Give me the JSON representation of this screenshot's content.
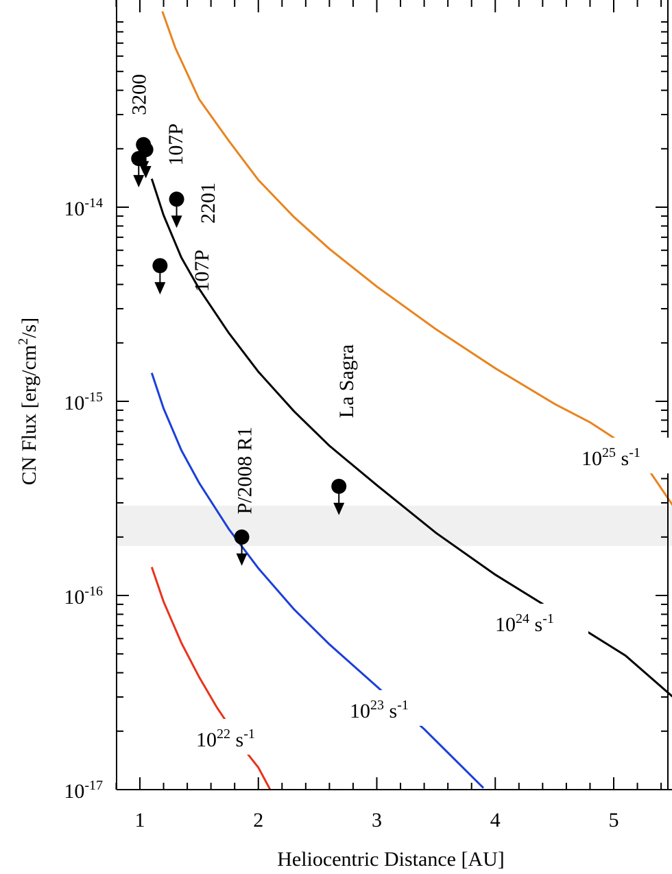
{
  "chart_data": {
    "type": "line",
    "xlabel": "Heliocentric Distance [AU]",
    "ylabel": "CN Flux [erg/cm²/s]",
    "ylabel_parts": {
      "base": "CN Flux [erg/cm",
      "sup": "2",
      "end": "/s]"
    },
    "xlim": [
      0.8,
      5.5
    ],
    "ylim": [
      1e-17,
      1e-13
    ],
    "yscale": "log",
    "xticks": [
      {
        "value": 1,
        "label": "1"
      },
      {
        "value": 2,
        "label": "2"
      },
      {
        "value": 3,
        "label": "3"
      },
      {
        "value": 4,
        "label": "4"
      },
      {
        "value": 5,
        "label": "5"
      }
    ],
    "yticks": [
      {
        "value": 1e-17,
        "base": "10",
        "exp": "-17"
      },
      {
        "value": 1e-16,
        "base": "10",
        "exp": "-16"
      },
      {
        "value": 1e-15,
        "base": "10",
        "exp": "-15"
      },
      {
        "value": 1e-14,
        "base": "10",
        "exp": "-14"
      }
    ],
    "shaded_band": {
      "y": [
        1.8e-16,
        2.9e-16
      ],
      "color": "#f0f0f0"
    },
    "series": [
      {
        "name_base": "10",
        "name_exp": "25",
        "name_unit": " s",
        "name_unit_exp": "-1",
        "color": "#e8841f",
        "x": [
          1.19,
          1.3,
          1.5,
          1.75,
          2.0,
          2.3,
          2.6,
          3.0,
          3.5,
          4.0,
          4.5,
          4.8,
          5.2,
          5.5
        ],
        "y": [
          1.02e-13,
          6.6e-14,
          3.6e-14,
          2.2e-14,
          1.38e-14,
          8.9e-15,
          6.1e-15,
          3.9e-15,
          2.35e-15,
          1.48e-15,
          9.7e-16,
          7.8e-16,
          5.4e-16,
          2.9e-16
        ]
      },
      {
        "name_base": "10",
        "name_exp": "24",
        "name_unit": " s",
        "name_unit_exp": "-1",
        "color": "#000000",
        "x": [
          1.1,
          1.2,
          1.35,
          1.5,
          1.75,
          2.0,
          2.3,
          2.6,
          3.0,
          3.5,
          4.0,
          4.6,
          5.1,
          5.5
        ],
        "y": [
          1.4e-14,
          9.1e-15,
          5.5e-15,
          3.8e-15,
          2.25e-15,
          1.42e-15,
          8.9e-16,
          5.9e-16,
          3.7e-16,
          2.1e-16,
          1.28e-16,
          7.6e-17,
          4.9e-17,
          3e-17
        ]
      },
      {
        "name_base": "10",
        "name_exp": "23",
        "name_unit": " s",
        "name_unit_exp": "-1",
        "color": "#1a3fd9",
        "x": [
          1.1,
          1.2,
          1.35,
          1.5,
          1.75,
          2.0,
          2.3,
          2.6,
          3.0,
          3.4,
          3.9
        ],
        "y": [
          1.4e-15,
          9.2e-16,
          5.6e-16,
          3.8e-16,
          2.2e-16,
          1.38e-16,
          8.5e-17,
          5.6e-17,
          3.4e-17,
          2.05e-17,
          1.02e-17
        ]
      },
      {
        "name_base": "10",
        "name_exp": "22",
        "name_unit": " s",
        "name_unit_exp": "-1",
        "color": "#e8341c",
        "x": [
          1.1,
          1.2,
          1.35,
          1.5,
          1.65,
          1.75,
          1.85,
          2.0,
          2.1
        ],
        "y": [
          1.4e-16,
          9.3e-17,
          5.7e-17,
          3.8e-17,
          2.65e-17,
          2.15e-17,
          1.7e-17,
          1.3e-17,
          1e-17
        ]
      }
    ],
    "points": [
      {
        "x": 0.99,
        "y": 1.78e-14,
        "upper_limit": true
      },
      {
        "x": 1.03,
        "y": 2.1e-14,
        "upper_limit": true
      },
      {
        "x": 1.05,
        "y": 1.98e-14,
        "upper_limit": true
      },
      {
        "x": 1.31,
        "y": 1.1e-14,
        "upper_limit": true
      },
      {
        "x": 1.17,
        "y": 5e-15,
        "upper_limit": true
      },
      {
        "x": 1.86,
        "y": 2e-16,
        "upper_limit": true
      },
      {
        "x": 2.68,
        "y": 3.65e-16,
        "upper_limit": true
      }
    ],
    "point_labels": [
      {
        "text": "3200",
        "x": 1.05,
        "y": 3.8e-14
      },
      {
        "text": "107P",
        "x": 1.36,
        "y": 2.1e-14
      },
      {
        "text": "2201",
        "x": 1.63,
        "y": 1.05e-14
      },
      {
        "text": "107P",
        "x": 1.58,
        "y": 4.7e-15
      },
      {
        "text": "P/2008 R1",
        "x": 1.94,
        "y": 4.4e-16
      },
      {
        "text": "La Sagra",
        "x": 2.8,
        "y": 1.27e-15
      }
    ]
  }
}
